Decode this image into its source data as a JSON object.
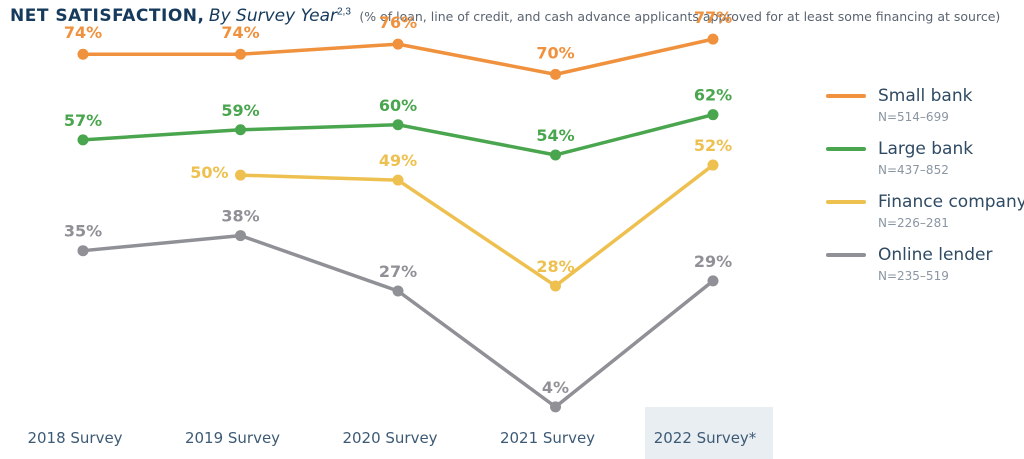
{
  "header": {
    "title": "NET SATISFACTION,",
    "subtitle": "By Survey Year",
    "superscript": "2,3",
    "note": "(% of loan, line of credit, and cash advance applicants approved for at least some financing at source)"
  },
  "chart_data": {
    "type": "line",
    "categories": [
      "2018 Survey",
      "2019 Survey",
      "2020 Survey",
      "2021 Survey",
      "2022 Survey*"
    ],
    "highlighted_category": "2022 Survey*",
    "value_suffix": "%",
    "ylim": [
      0,
      80
    ],
    "grid": false,
    "legend_position": "right",
    "series": [
      {
        "name": "Small bank",
        "n_label": "N=514–699",
        "color": "#f0913e",
        "values": [
          74,
          74,
          76,
          70,
          77
        ]
      },
      {
        "name": "Large bank",
        "n_label": "N=437–852",
        "color": "#4aa64e",
        "values": [
          57,
          59,
          60,
          54,
          62
        ]
      },
      {
        "name": "Finance company",
        "n_label": "N=226–281",
        "color": "#eec04f",
        "values": [
          null,
          50,
          49,
          28,
          52
        ]
      },
      {
        "name": "Online lender",
        "n_label": "N=235–519",
        "color": "#8f9196",
        "values": [
          35,
          38,
          27,
          4,
          29
        ]
      }
    ]
  }
}
